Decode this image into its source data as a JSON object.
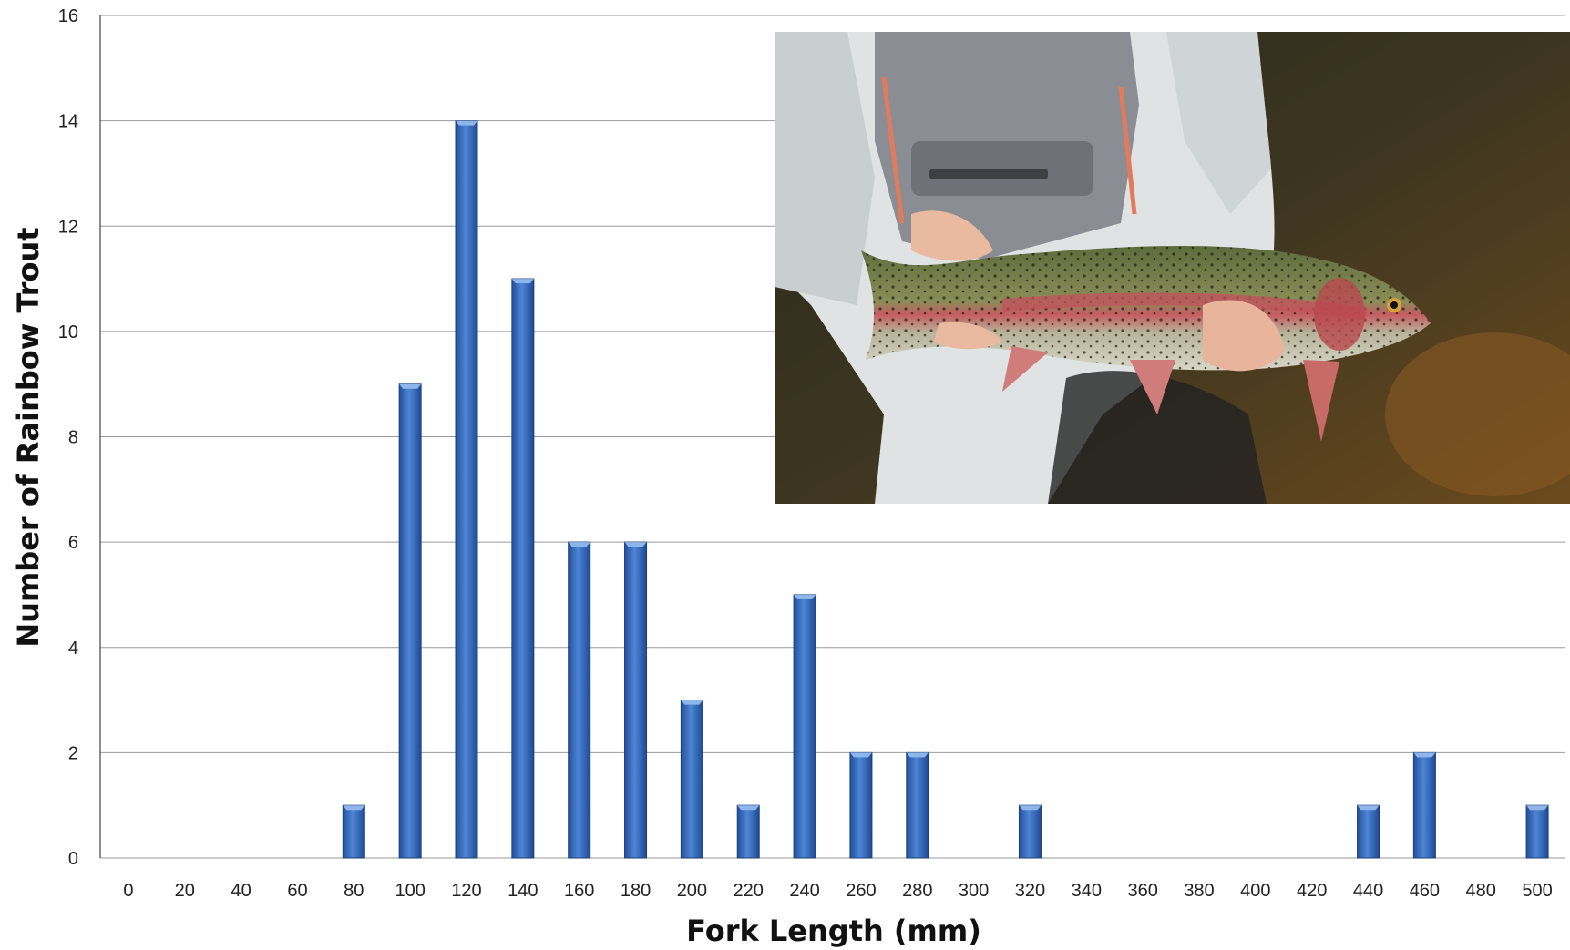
{
  "chart_data": {
    "type": "bar",
    "xlabel": "Fork Length (mm)",
    "ylabel": "Number of Rainbow Trout",
    "categories": [
      "0",
      "20",
      "40",
      "60",
      "80",
      "100",
      "120",
      "140",
      "160",
      "180",
      "200",
      "220",
      "240",
      "260",
      "280",
      "300",
      "320",
      "340",
      "360",
      "380",
      "400",
      "420",
      "440",
      "460",
      "480",
      "500"
    ],
    "values": [
      0,
      0,
      0,
      0,
      1,
      9,
      14,
      11,
      6,
      6,
      3,
      1,
      5,
      2,
      2,
      0,
      1,
      0,
      0,
      0,
      0,
      0,
      1,
      2,
      0,
      1
    ],
    "ylim": [
      0,
      16
    ],
    "yticks": [
      0,
      2,
      4,
      6,
      8,
      10,
      12,
      14,
      16
    ],
    "grid": true,
    "bar_color": "#3a6fc4"
  },
  "photo": {
    "subject": "angler-holding-rainbow-trout"
  }
}
